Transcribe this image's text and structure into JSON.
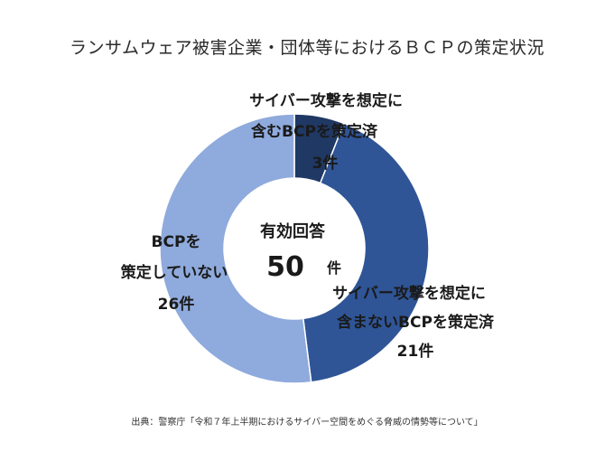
{
  "chart_data": {
    "type": "pie",
    "title": "ランサムウェア被害企業・団体等におけるＢＣＰの策定状況",
    "center": {
      "label": "有効回答",
      "value": 50,
      "unit": "件"
    },
    "slices": [
      {
        "name": "サイバー攻撃を想定に含むBCPを策定済",
        "label_lines": [
          "サイバー攻撃を想定に",
          "含むBCPを策定済"
        ],
        "value": 3,
        "value_label": "3件",
        "color": "#1f3864"
      },
      {
        "name": "サイバー攻撃を想定に含まないBCPを策定済",
        "label_lines": [
          "サイバー攻撃を想定に",
          "含まないBCPを策定済"
        ],
        "value": 21,
        "value_label": "21件",
        "color": "#2f5597"
      },
      {
        "name": "BCPを策定していない",
        "label_lines": [
          "BCPを",
          "策定していない"
        ],
        "value": 26,
        "value_label": "26件",
        "color": "#8faadc"
      }
    ],
    "source": "出典：警察庁「令和７年上半期におけるサイバー空間をめぐる脅威の情勢等について」"
  }
}
